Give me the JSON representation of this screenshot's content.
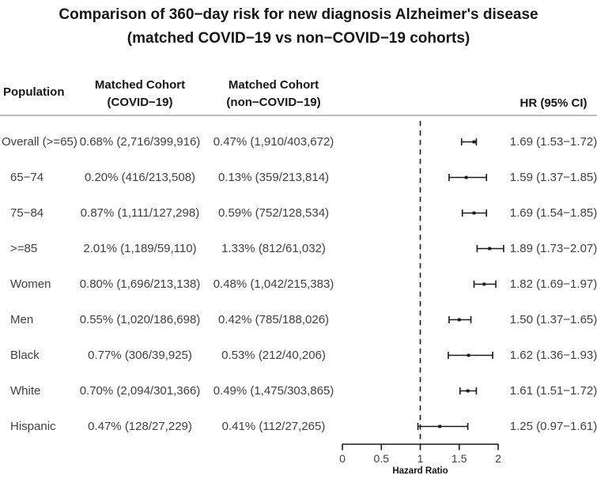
{
  "title": {
    "line1": "Comparison of 360−day risk for new diagnosis Alzheimer's disease",
    "line2": "(matched COVID−19 vs non−COVID−19 cohorts)"
  },
  "header": {
    "population": "Population",
    "covid_line1": "Matched Cohort",
    "covid_line2": "(COVID−19)",
    "noncovid_line1": "Matched Cohort",
    "noncovid_line2": "(non−COVID−19)",
    "hr": "HR (95% CI)"
  },
  "chart_data": {
    "type": "forest",
    "xlabel": "Hazard Ratio",
    "axis": {
      "min": 0,
      "max": 2,
      "reference_line": 1,
      "ticks": [
        {
          "label": "0",
          "value": 0
        },
        {
          "label": "0.5",
          "value": 0.5
        },
        {
          "label": "1",
          "value": 1
        },
        {
          "label": "1.5",
          "value": 1.5
        },
        {
          "label": "2",
          "value": 2
        }
      ]
    },
    "rows": [
      {
        "population": "Overall (>=65)",
        "covid": "0.68% (2,716/399,916)",
        "noncovid": "0.47% (1,910/403,672)",
        "hr": 1.69,
        "ci_low": 1.53,
        "ci_high": 1.72,
        "hr_text": "1.69 (1.53−1.72)"
      },
      {
        "population": "65−74",
        "covid": "0.20% (416/213,508)",
        "noncovid": "0.13% (359/213,814)",
        "hr": 1.59,
        "ci_low": 1.37,
        "ci_high": 1.85,
        "hr_text": "1.59 (1.37−1.85)"
      },
      {
        "population": "75−84",
        "covid": "0.87% (1,111/127,298)",
        "noncovid": "0.59% (752/128,534)",
        "hr": 1.69,
        "ci_low": 1.54,
        "ci_high": 1.85,
        "hr_text": "1.69 (1.54−1.85)"
      },
      {
        "population": ">=85",
        "covid": "2.01% (1,189/59,110)",
        "noncovid": "1.33% (812/61,032)",
        "hr": 1.89,
        "ci_low": 1.73,
        "ci_high": 2.07,
        "hr_text": "1.89 (1.73−2.07)"
      },
      {
        "population": "Women",
        "covid": "0.80% (1,696/213,138)",
        "noncovid": "0.48% (1,042/215,383)",
        "hr": 1.82,
        "ci_low": 1.69,
        "ci_high": 1.97,
        "hr_text": "1.82 (1.69−1.97)"
      },
      {
        "population": "Men",
        "covid": "0.55% (1,020/186,698)",
        "noncovid": "0.42% (785/188,026)",
        "hr": 1.5,
        "ci_low": 1.37,
        "ci_high": 1.65,
        "hr_text": "1.50 (1.37−1.65)"
      },
      {
        "population": "Black",
        "covid": "0.77% (306/39,925)",
        "noncovid": "0.53% (212/40,206)",
        "hr": 1.62,
        "ci_low": 1.36,
        "ci_high": 1.93,
        "hr_text": "1.62 (1.36−1.93)"
      },
      {
        "population": "White",
        "covid": "0.70% (2,094/301,366)",
        "noncovid": "0.49% (1,475/303,865)",
        "hr": 1.61,
        "ci_low": 1.51,
        "ci_high": 1.72,
        "hr_text": "1.61 (1.51−1.72)"
      },
      {
        "population": "Hispanic",
        "covid": "0.47% (128/27,229)",
        "noncovid": "0.41% (112/27,265)",
        "hr": 1.25,
        "ci_low": 0.97,
        "ci_high": 1.61,
        "hr_text": "1.25 (0.97−1.61)"
      }
    ]
  },
  "colors": {
    "line": "#1a1a1a",
    "body_text": "#3f3f3f",
    "heading_text": "#161616",
    "separator": "#bdbdbd"
  }
}
